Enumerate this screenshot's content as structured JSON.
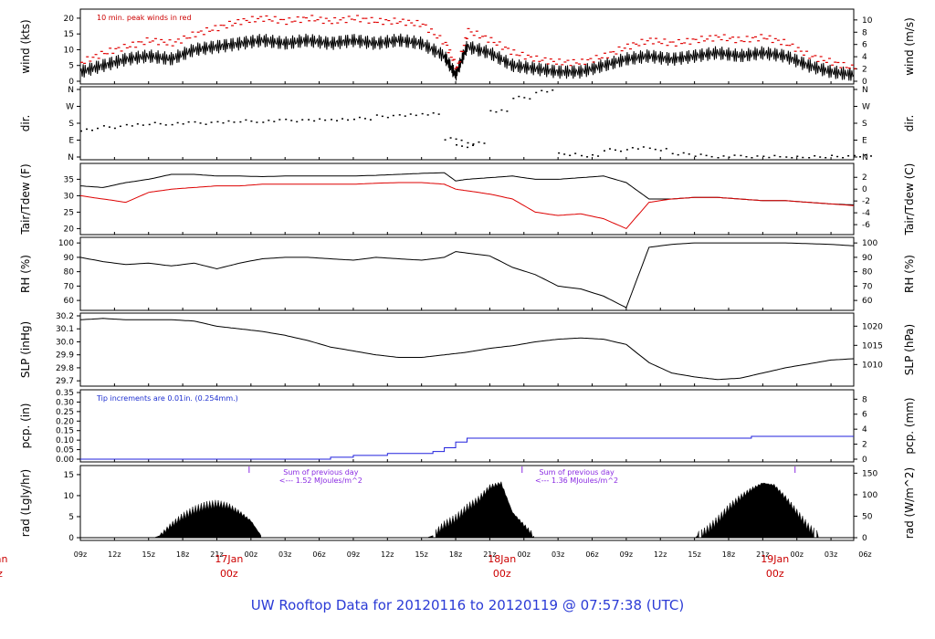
{
  "chart_data": {
    "type": "line",
    "title": "UW Rooftop Data for 20120116  to  20120119 @ 07:57:38  (UTC)",
    "x_hour_labels": [
      "09z",
      "12z",
      "15z",
      "18z",
      "21z",
      "00z",
      "03z",
      "06z",
      "09z",
      "12z",
      "15z",
      "18z",
      "21z",
      "00z",
      "03z",
      "06z",
      "09z",
      "12z",
      "15z",
      "18z",
      "21z",
      "00z",
      "03z",
      "06z"
    ],
    "x_range_hours": [
      0,
      68
    ],
    "day_markers": [
      {
        "hour": 15,
        "date": "17Jan",
        "time": "00z"
      },
      {
        "hour": 39,
        "date": "18Jan",
        "time": "00z"
      },
      {
        "hour": 63,
        "date": "19Jan",
        "time": "00z"
      }
    ],
    "edge_day_label": {
      "date": "Jan",
      "time": "z"
    },
    "panels": [
      {
        "id": "wind",
        "ylabel": "wind (kts)",
        "ylabel_right": "wind (m/s)",
        "ylim": [
          0,
          22
        ],
        "yticks": [
          "0",
          "5",
          "10",
          "15",
          "20"
        ],
        "yticks_right": [
          "0",
          "2",
          "4",
          "6",
          "8",
          "10"
        ],
        "note": "10 min. peak winds in red",
        "series": [
          {
            "name": "wind speed",
            "color": "#000000",
            "x": [
              0,
              2,
              4,
              6,
              8,
              10,
              12,
              14,
              16,
              18,
              20,
              22,
              24,
              26,
              28,
              30,
              32,
              33,
              34,
              36,
              38,
              40,
              42,
              44,
              46,
              48,
              50,
              52,
              54,
              56,
              58,
              60,
              62,
              64,
              66,
              68
            ],
            "y": [
              3,
              5,
              7,
              8,
              7,
              10,
              11,
              12,
              13,
              12,
              13,
              12,
              13,
              12,
              13,
              12,
              8,
              2,
              11,
              9,
              5,
              4,
              3,
              3,
              5,
              7,
              8,
              7,
              8,
              9,
              8,
              9,
              8,
              5,
              3,
              2
            ]
          },
          {
            "name": "10 min peak wind",
            "color": "#e00000",
            "x": [
              0,
              2,
              4,
              6,
              8,
              10,
              12,
              14,
              16,
              18,
              20,
              22,
              24,
              26,
              28,
              30,
              32,
              33,
              34,
              36,
              38,
              40,
              42,
              44,
              46,
              48,
              50,
              52,
              54,
              56,
              58,
              60,
              62,
              64,
              66,
              68
            ],
            "y": [
              6,
              9,
              11,
              13,
              12,
              15,
              17,
              19,
              20,
              19,
              20,
              19,
              20,
              19,
              19,
              18,
              12,
              4,
              16,
              13,
              9,
              7,
              6,
              6,
              8,
              11,
              13,
              12,
              13,
              14,
              13,
              14,
              12,
              8,
              6,
              4
            ]
          }
        ]
      },
      {
        "id": "dir",
        "ylabel": "dir.",
        "ylabel_right": "dir.",
        "ylim": [
          0,
          360
        ],
        "yticks": [
          "N",
          "E",
          "S",
          "W",
          "N"
        ],
        "series": [
          {
            "name": "wind direction (deg)",
            "color": "#000000",
            "x": [
              0,
              2,
              4,
              6,
              8,
              10,
              12,
              14,
              16,
              18,
              20,
              22,
              24,
              26,
              28,
              30,
              32,
              33,
              34,
              36,
              38,
              40,
              42,
              44,
              46,
              48,
              50,
              52,
              54,
              56,
              58,
              60,
              62,
              64,
              66,
              68
            ],
            "y": [
              150,
              165,
              175,
              180,
              183,
              185,
              190,
              193,
              195,
              198,
              200,
              205,
              210,
              220,
              225,
              235,
              100,
              60,
              75,
              250,
              320,
              355,
              20,
              10,
              40,
              50,
              45,
              20,
              10,
              5,
              5,
              5,
              5,
              5,
              5,
              8
            ]
          }
        ]
      },
      {
        "id": "temp",
        "ylabel": "Tair/Tdew (F)",
        "ylabel_right": "Tair/Tdew (C)",
        "ylim": [
          19,
          39
        ],
        "yticks": [
          "20",
          "25",
          "30",
          "35"
        ],
        "yticks_right": [
          "-6",
          "-4",
          "-2",
          "0",
          "2"
        ],
        "series": [
          {
            "name": "Tair",
            "color": "#000000",
            "x": [
              0,
              2,
              4,
              6,
              8,
              10,
              12,
              14,
              16,
              18,
              20,
              22,
              24,
              26,
              28,
              30,
              32,
              33,
              34,
              36,
              38,
              40,
              42,
              44,
              46,
              48,
              50,
              52,
              54,
              56,
              58,
              60,
              62,
              64,
              66,
              68
            ],
            "y": [
              33,
              32.5,
              34,
              35,
              36.5,
              36.5,
              36,
              36,
              35.8,
              36,
              36,
              36,
              36,
              36.2,
              36.5,
              36.8,
              37,
              34.5,
              35,
              35.5,
              36,
              35,
              35,
              35.5,
              36,
              34,
              29,
              29,
              29.5,
              29.5,
              29,
              28.5,
              28.5,
              28,
              27.5,
              27.2
            ]
          },
          {
            "name": "Tdew",
            "color": "#dd0000",
            "x": [
              0,
              2,
              4,
              6,
              8,
              10,
              12,
              14,
              16,
              18,
              20,
              22,
              24,
              26,
              28,
              30,
              32,
              33,
              34,
              36,
              38,
              40,
              42,
              44,
              46,
              48,
              50,
              52,
              54,
              56,
              58,
              60,
              62,
              64,
              66,
              68
            ],
            "y": [
              30,
              29,
              28,
              31,
              32,
              32.5,
              33,
              33,
              33.5,
              33.5,
              33.5,
              33.5,
              33.5,
              33.8,
              34,
              34,
              33.5,
              32,
              31.5,
              30.5,
              29,
              25,
              24,
              24.5,
              23,
              20,
              28,
              29,
              29.5,
              29.5,
              29,
              28.5,
              28.5,
              28,
              27.5,
              27
            ]
          }
        ]
      },
      {
        "id": "rh",
        "ylabel": "RH (%)",
        "ylabel_right": "RH (%)",
        "ylim": [
          55,
          102
        ],
        "yticks": [
          "60",
          "70",
          "80",
          "90",
          "100"
        ],
        "yticks_right": [
          "60",
          "70",
          "80",
          "90",
          "100"
        ],
        "series": [
          {
            "name": "relative humidity",
            "color": "#000000",
            "x": [
              0,
              2,
              4,
              6,
              8,
              10,
              12,
              14,
              16,
              18,
              20,
              22,
              24,
              26,
              28,
              30,
              32,
              33,
              34,
              36,
              38,
              40,
              42,
              44,
              46,
              48,
              50,
              52,
              54,
              56,
              58,
              60,
              62,
              64,
              66,
              68
            ],
            "y": [
              90,
              87,
              85,
              86,
              84,
              86,
              82,
              86,
              89,
              90,
              90,
              89,
              88,
              90,
              89,
              88,
              90,
              94,
              93,
              91,
              83,
              78,
              70,
              68,
              63,
              55,
              97,
              99,
              100,
              100,
              100,
              100,
              100,
              99.5,
              99,
              98
            ]
          }
        ]
      },
      {
        "id": "slp",
        "ylabel": "SLP (inHg)",
        "ylabel_right": "SLP (hPa)",
        "ylim": [
          29.68,
          30.2
        ],
        "yticks": [
          "29.7",
          "29.8",
          "29.9",
          "30.0",
          "30.1",
          "30.2"
        ],
        "yticks_right": [
          "1010",
          "1015",
          "1020"
        ],
        "series": [
          {
            "name": "sea level pressure",
            "color": "#000000",
            "x": [
              0,
              2,
              4,
              6,
              8,
              10,
              12,
              14,
              16,
              18,
              20,
              22,
              24,
              26,
              28,
              30,
              32,
              33,
              34,
              36,
              38,
              40,
              42,
              44,
              46,
              48,
              50,
              52,
              54,
              56,
              58,
              60,
              62,
              64,
              66,
              68
            ],
            "y": [
              30.17,
              30.18,
              30.17,
              30.17,
              30.17,
              30.16,
              30.12,
              30.1,
              30.08,
              30.05,
              30.01,
              29.96,
              29.93,
              29.9,
              29.88,
              29.88,
              29.9,
              29.91,
              29.92,
              29.95,
              29.97,
              30.0,
              30.02,
              30.03,
              30.02,
              29.98,
              29.84,
              29.76,
              29.73,
              29.71,
              29.72,
              29.76,
              29.8,
              29.83,
              29.86,
              29.87
            ]
          }
        ]
      },
      {
        "id": "pcp",
        "ylabel": "pcp. (in)",
        "ylabel_right": "pcp. (mm)",
        "ylim": [
          0,
          0.35
        ],
        "yticks": [
          "0.00",
          "0.05",
          "0.10",
          "0.15",
          "0.20",
          "0.25",
          "0.30",
          "0.35"
        ],
        "yticks_right": [
          "0",
          "2",
          "4",
          "6",
          "8"
        ],
        "note": "Tip increments are 0.01in. (0.254mm.)",
        "series": [
          {
            "name": "cumulative precipitation",
            "color": "#2222dd",
            "x": [
              0,
              21,
              22,
              24,
              27,
              31,
              32,
              33,
              34,
              35,
              40,
              58,
              59,
              68
            ],
            "y": [
              0,
              0,
              0.01,
              0.02,
              0.03,
              0.04,
              0.06,
              0.09,
              0.11,
              0.11,
              0.11,
              0.11,
              0.12,
              0.12
            ]
          }
        ]
      },
      {
        "id": "rad",
        "ylabel": "rad (Lgly/hr)",
        "ylabel_right": "rad (W/m^2)",
        "ylim": [
          0,
          16.5
        ],
        "yticks": [
          "0",
          "5",
          "10",
          "15"
        ],
        "yticks_right": [
          "0",
          "50",
          "100",
          "150"
        ],
        "annotations": [
          {
            "hour": 20.5,
            "text": "Sum of previous day"
          },
          {
            "hour": 20.5,
            "text": "<--- 1.52 MJoules/m^2"
          },
          {
            "hour": 43,
            "text": "Sum of previous day"
          },
          {
            "hour": 43,
            "text": "<--- 1.36 MJoules/m^2"
          }
        ],
        "series": [
          {
            "name": "solar radiation",
            "color": "#000000",
            "fill": true,
            "x": [
              6.5,
              7,
              8,
              9,
              10,
              11,
              12,
              13,
              14,
              15,
              16,
              30.5,
              31,
              32,
              33,
              34,
              35,
              36,
              37,
              38,
              39,
              40,
              54,
              55,
              56,
              57,
              58,
              59,
              60,
              61,
              62,
              63,
              64,
              65
            ],
            "y": [
              0,
              0.5,
              3,
              5,
              6.5,
              7.5,
              8,
              7.5,
              6,
              4,
              0,
              0,
              0.5,
              3,
              4.5,
              7,
              9,
              12,
              13,
              6,
              3,
              0,
              0,
              1.5,
              4,
              7,
              9.5,
              11.5,
              13,
              12.5,
              9.5,
              6,
              2.5,
              0
            ]
          }
        ]
      }
    ]
  }
}
